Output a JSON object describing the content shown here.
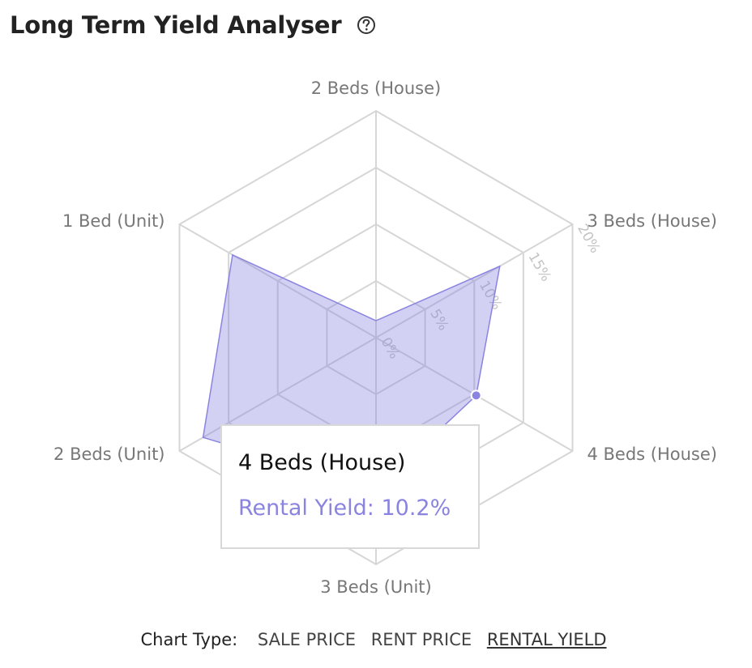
{
  "header": {
    "title": "Long Term Yield Analyser",
    "help_icon": "question-circle-icon"
  },
  "chart_data": {
    "type": "radar",
    "categories": [
      "2 Beds (House)",
      "3 Beds (House)",
      "4 Beds (House)",
      "3 Beds (Unit)",
      "2 Beds (Unit)",
      "1 Bed (Unit)"
    ],
    "series": [
      {
        "name": "Rental Yield",
        "values": [
          1.5,
          12.6,
          10.2,
          13.4,
          17.6,
          14.6
        ],
        "color": "#8a84e0"
      }
    ],
    "ticks": [
      "0%",
      "5%",
      "10%",
      "15%",
      "20%"
    ],
    "rmax": 20,
    "grid": true
  },
  "tooltip": {
    "title": "4 Beds (House)",
    "label": "Rental Yield",
    "value": "10.2%"
  },
  "footer": {
    "chart_type_label": "Chart Type:",
    "options": [
      "SALE PRICE",
      "RENT PRICE",
      "RENTAL YIELD"
    ],
    "active": "RENTAL YIELD"
  }
}
